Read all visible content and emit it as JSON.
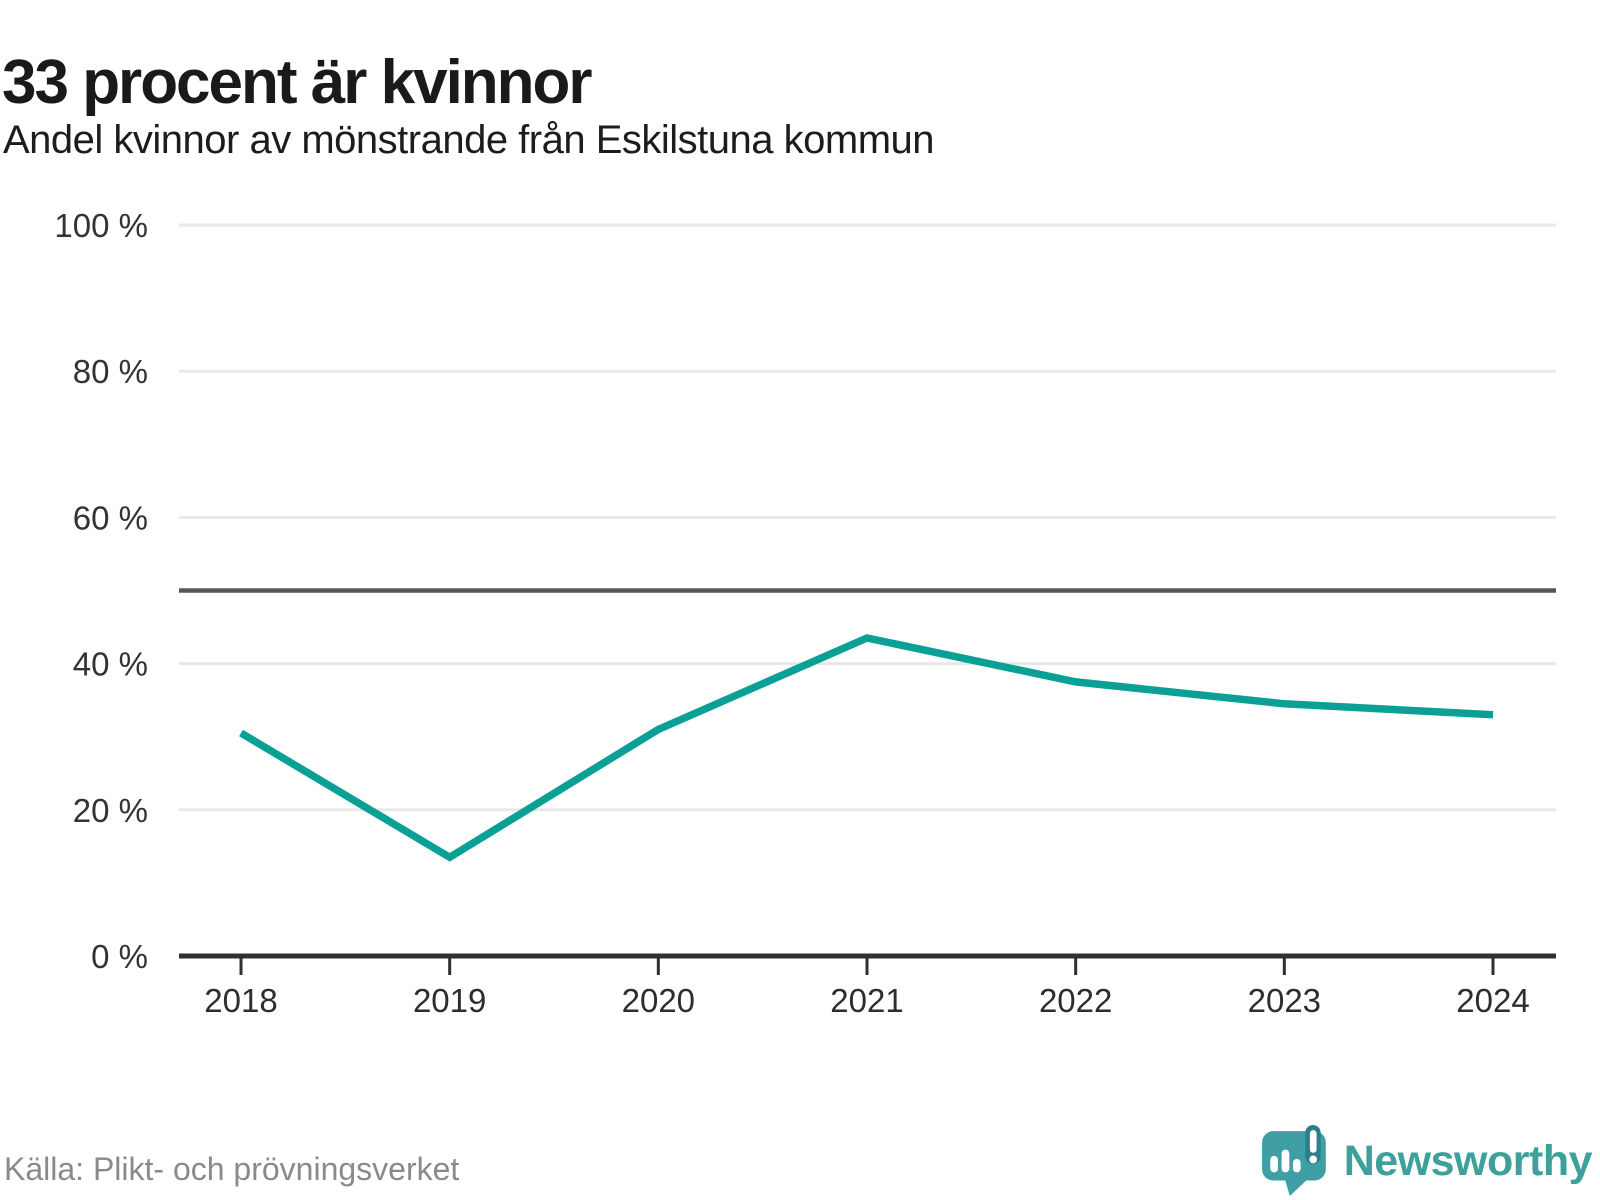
{
  "header": {
    "title": "33 procent är kvinnor",
    "subtitle": "Andel kvinnor av mönstrande från Eskilstuna kommun"
  },
  "chart_data": {
    "type": "line",
    "x": [
      2018,
      2019,
      2020,
      2021,
      2022,
      2023,
      2024
    ],
    "xtick_labels": [
      "2018",
      "2019",
      "2020",
      "2021",
      "2022",
      "2023",
      "2024"
    ],
    "series": [
      {
        "name": "Andel kvinnor av mönstrande",
        "values": [
          30.5,
          13.5,
          31,
          43.5,
          37.5,
          34.5,
          33
        ]
      }
    ],
    "unit": "%",
    "ylim": [
      0,
      100
    ],
    "yticks": [
      0,
      20,
      40,
      60,
      80,
      100
    ],
    "ytick_labels": [
      "0 %",
      "20 %",
      "40 %",
      "60 %",
      "80 %",
      "100 %"
    ],
    "reference_line": 50,
    "grid": "horizontal-only",
    "legend": "none",
    "colors": {
      "line": "#0aa096",
      "gridline": "#e8e8e8",
      "reference_line": "#55555c",
      "axis": "#303034",
      "tick_label": "#333333"
    }
  },
  "footer": {
    "source": "Källa: Plikt- och prövningsverket",
    "brand": "Newsworthy",
    "brand_color": "#3da09b"
  }
}
